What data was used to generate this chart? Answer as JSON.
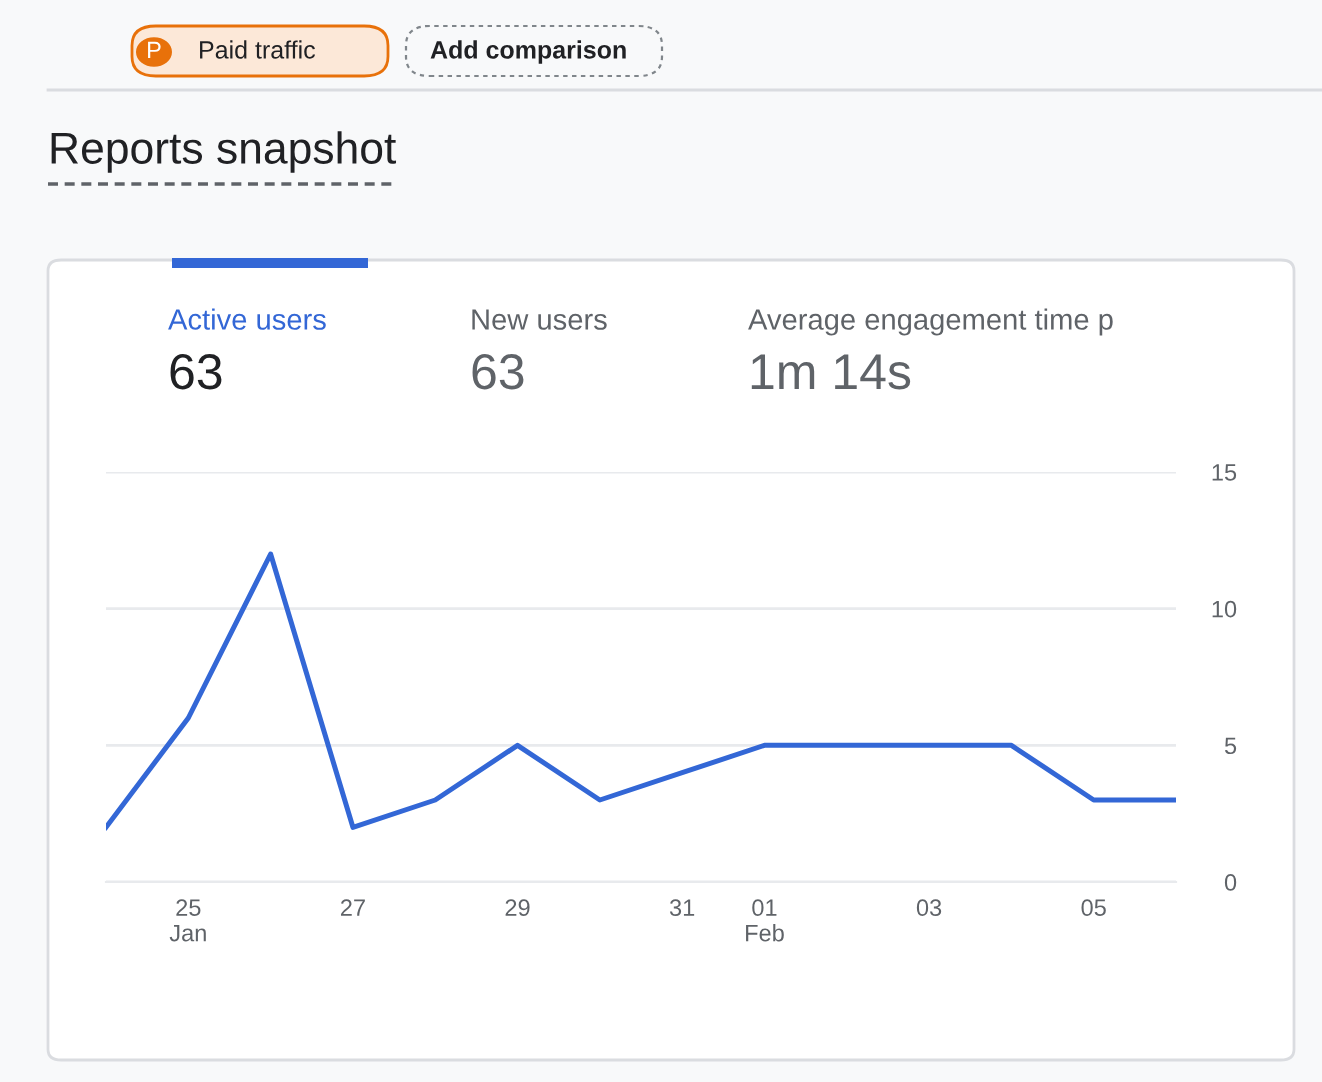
{
  "chart_data": {
    "type": "line",
    "title": "Reports snapshot",
    "annotations": [
      "Paid traffic",
      "P",
      "Add comparison",
      "Active users",
      "63",
      "New users",
      "63",
      "Average engagement time p",
      "1m 14s"
    ],
    "categories": [
      null,
      "25\nJan",
      null,
      "27",
      null,
      "29",
      null,
      "31",
      "01\nFeb",
      null,
      "03",
      null,
      "05",
      null
    ],
    "series": [
      {
        "color": "#3367d6",
        "values": [
          2,
          6,
          12,
          2,
          3,
          5,
          3,
          4,
          5,
          5,
          5,
          5,
          3,
          3
        ]
      }
    ],
    "ylim": [
      0,
      15
    ],
    "yticks": [
      0,
      5,
      10,
      15
    ],
    "grid": "y",
    "marker": "none",
    "line_style": "solid"
  }
}
